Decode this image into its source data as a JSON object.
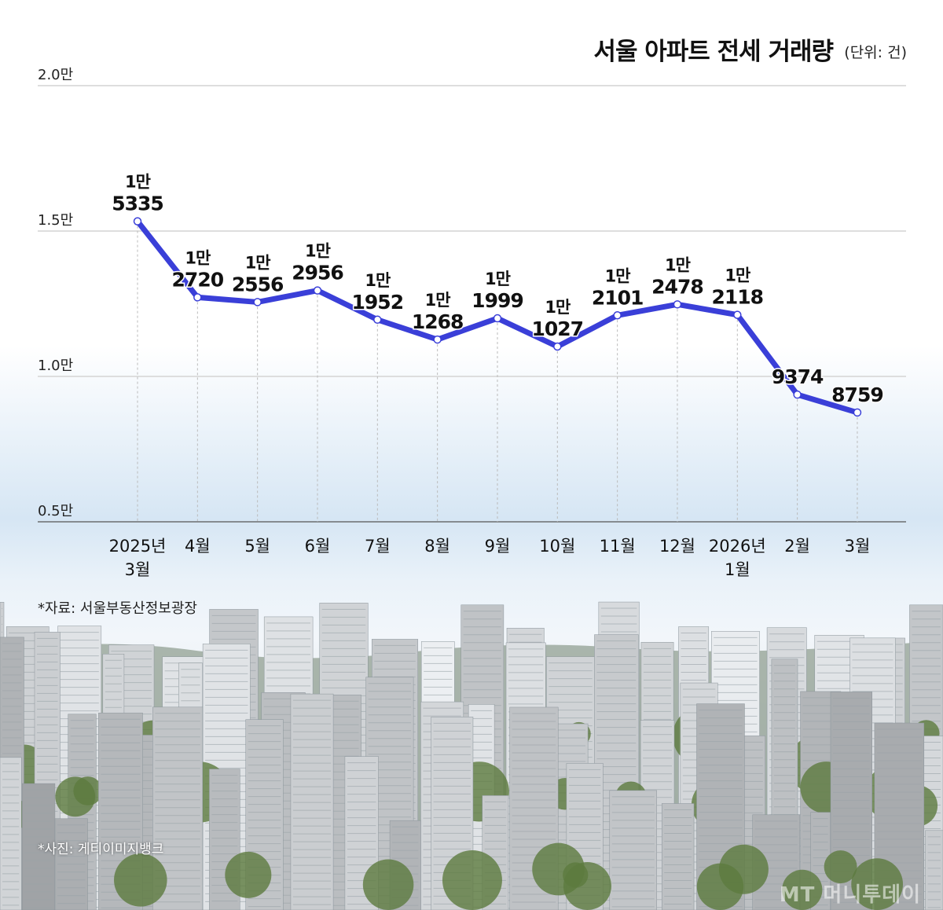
{
  "chart_data": {
    "type": "line",
    "title": "서울 아파트 전세 거래량",
    "unit": "(단위: 건)",
    "xlabel": "",
    "ylabel": "",
    "ylim": [
      5000,
      20000
    ],
    "y_ticks": [
      {
        "value": 5000,
        "label": "0.5만"
      },
      {
        "value": 10000,
        "label": "1.0만"
      },
      {
        "value": 15000,
        "label": "1.5만"
      },
      {
        "value": 20000,
        "label": "2.0만"
      }
    ],
    "grid": true,
    "categories": [
      [
        "2025년",
        "3월"
      ],
      [
        "4월"
      ],
      [
        "5월"
      ],
      [
        "6월"
      ],
      [
        "7월"
      ],
      [
        "8월"
      ],
      [
        "9월"
      ],
      [
        "10월"
      ],
      [
        "11월"
      ],
      [
        "12월"
      ],
      [
        "2026년",
        "1월"
      ],
      [
        "2월"
      ],
      [
        "3월"
      ]
    ],
    "series": [
      {
        "name": "전세 거래량",
        "color": "#3a3fd8",
        "values": [
          15335,
          12720,
          12556,
          12956,
          11952,
          11268,
          11999,
          11027,
          12101,
          12478,
          12118,
          9374,
          8759
        ],
        "labels": [
          [
            "1만",
            "5335"
          ],
          [
            "1만",
            "2720"
          ],
          [
            "1만",
            "2556"
          ],
          [
            "1만",
            "2956"
          ],
          [
            "1만",
            "1952"
          ],
          [
            "1만",
            "1268"
          ],
          [
            "1만",
            "1999"
          ],
          [
            "1만",
            "1027"
          ],
          [
            "1만",
            "2101"
          ],
          [
            "1만",
            "2478"
          ],
          [
            "1만",
            "2118"
          ],
          [
            "9374"
          ],
          [
            "8759"
          ]
        ]
      }
    ]
  },
  "source": "*자료: 서울부동산정보광장",
  "photo_credit": "*사진: 게티이미지뱅크",
  "watermark": "MT 머니투데이"
}
